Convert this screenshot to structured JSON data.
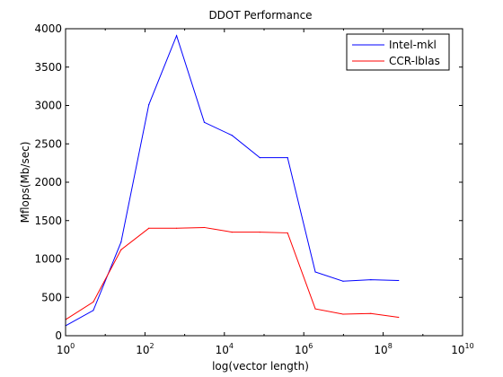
{
  "chart_data": {
    "type": "line",
    "title": "DDOT Performance",
    "xlabel": "log(vector length)",
    "ylabel": "Mflops(Mb/sec)",
    "x_scale": "log10",
    "xlim": [
      1,
      10000000000
    ],
    "ylim": [
      0,
      4000
    ],
    "x_ticks": [
      {
        "base": "10",
        "exp": "0",
        "value": 1
      },
      {
        "base": "10",
        "exp": "2",
        "value": 100
      },
      {
        "base": "10",
        "exp": "4",
        "value": 10000
      },
      {
        "base": "10",
        "exp": "6",
        "value": 1000000
      },
      {
        "base": "10",
        "exp": "8",
        "value": 100000000
      },
      {
        "base": "10",
        "exp": "10",
        "value": 10000000000
      }
    ],
    "y_ticks": [
      "0",
      "500",
      "1000",
      "1500",
      "2000",
      "2500",
      "3000",
      "3500",
      "4000"
    ],
    "grid": false,
    "legend_position": "top-right",
    "x": [
      1,
      5,
      25,
      125,
      625,
      3125,
      15625,
      78125,
      390625,
      1953125,
      9765625,
      48828125,
      244140625
    ],
    "series": [
      {
        "name": "Intel-mkl",
        "color": "#0000ff",
        "values": [
          130,
          330,
          1220,
          3010,
          3910,
          2780,
          2610,
          2320,
          2320,
          830,
          710,
          730,
          720
        ]
      },
      {
        "name": "CCR-lblas",
        "color": "#ff0000",
        "values": [
          210,
          440,
          1120,
          1400,
          1400,
          1410,
          1350,
          1350,
          1340,
          350,
          280,
          290,
          240
        ]
      }
    ]
  }
}
